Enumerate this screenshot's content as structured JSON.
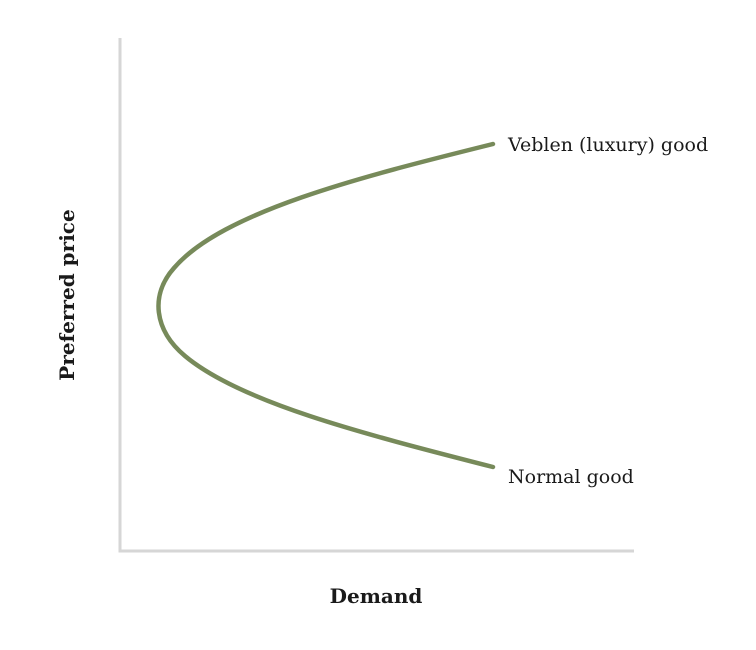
{
  "diagram": {
    "x_axis_label": "Demand",
    "y_axis_label": "Preferred price",
    "curve_color": "#778a5a",
    "axis_color": "#d6d6d6",
    "upper_branch_label": "Veblen (luxury) good",
    "lower_branch_label": "Normal good"
  }
}
